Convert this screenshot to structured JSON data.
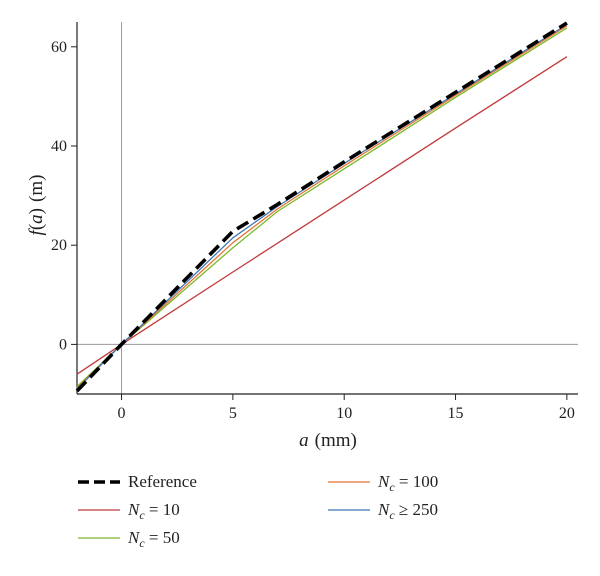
{
  "chart_data": {
    "type": "line",
    "xlabel": {
      "var": "a",
      "unit": "(mm)"
    },
    "ylabel": {
      "fn": "f",
      "var": "a",
      "unit": "(m)"
    },
    "xlim": [
      -2,
      20.5
    ],
    "ylim": [
      -10,
      65
    ],
    "x_ticks": [
      0,
      5,
      10,
      15,
      20
    ],
    "y_ticks": [
      0,
      20,
      40,
      60
    ],
    "grid": false,
    "zero_lines": true,
    "legend_position": "bottom",
    "series": [
      {
        "name": "Reference",
        "legend": {
          "main": "Reference"
        },
        "color": "#000000",
        "dashed": true,
        "points": [
          [
            -2,
            -9.4
          ],
          [
            0,
            0
          ],
          [
            5,
            22.8
          ],
          [
            7,
            28.2
          ],
          [
            10,
            36.8
          ],
          [
            15,
            50.8
          ],
          [
            20,
            64.8
          ]
        ]
      },
      {
        "name": "Nc = 10",
        "legend": {
          "main": "N",
          "sub": "c",
          "rest": " = 10"
        },
        "color": "#c0393b",
        "dashed": false,
        "points": [
          [
            -2,
            -6
          ],
          [
            0,
            0
          ],
          [
            5,
            14.6
          ],
          [
            10,
            29.1
          ],
          [
            15,
            43.6
          ],
          [
            20,
            58
          ]
        ]
      },
      {
        "name": "Nc = 50",
        "legend": {
          "main": "N",
          "sub": "c",
          "rest": " = 50"
        },
        "color": "#7cb829",
        "dashed": false,
        "points": [
          [
            -2,
            -8.5
          ],
          [
            0,
            0
          ],
          [
            5,
            19.5
          ],
          [
            7,
            26.8
          ],
          [
            10,
            35.4
          ],
          [
            15,
            49.8
          ],
          [
            20,
            63.8
          ]
        ]
      },
      {
        "name": "Nc = 100",
        "legend": {
          "main": "N",
          "sub": "c",
          "rest": " = 100"
        },
        "color": "#e57534",
        "dashed": false,
        "points": [
          [
            -2,
            -8.8
          ],
          [
            0,
            0
          ],
          [
            5,
            20.5
          ],
          [
            7,
            27.3
          ],
          [
            10,
            36
          ],
          [
            15,
            50.2
          ],
          [
            20,
            64.2
          ]
        ]
      },
      {
        "name": "Nc ≥ 250",
        "legend": {
          "main": "N",
          "sub": "c",
          "rest": " ≥ 250"
        },
        "color": "#3a78b8",
        "dashed": false,
        "points": [
          [
            -2,
            -9
          ],
          [
            0,
            0
          ],
          [
            5,
            21.5
          ],
          [
            7,
            27.8
          ],
          [
            10,
            36.5
          ],
          [
            15,
            50.5
          ],
          [
            20,
            64.5
          ]
        ]
      }
    ]
  }
}
